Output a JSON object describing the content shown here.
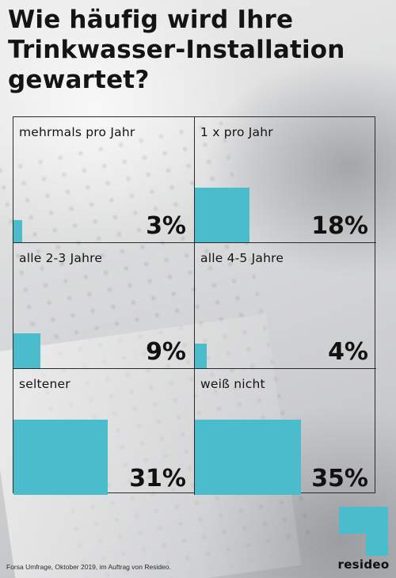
{
  "title_lines": [
    "Wie häufig wird Ihre",
    "Trinkwasser-Installation",
    "gewartet?"
  ],
  "chart_data": {
    "type": "bar",
    "title": "Wie häufig wird Ihre Trinkwasser-Installation gewartet?",
    "categories": [
      "mehrmals pro Jahr",
      "1 x pro Jahr",
      "alle 2-3 Jahre",
      "alle 4-5 Jahre",
      "seltener",
      "weiß nicht"
    ],
    "values": [
      3,
      18,
      9,
      4,
      31,
      35
    ],
    "value_labels": [
      "3%",
      "18%",
      "9%",
      "4%",
      "31%",
      "35%"
    ],
    "unit": "%",
    "ylim": [
      0,
      100
    ],
    "bar_color": "#4bbccc",
    "layout": "3x2 grid"
  },
  "source": "Forsa Umfrage, Oktober 2019, im Auftrag von Resideo.",
  "brand": {
    "name": "resideo",
    "logo_color": "#4bbccc",
    "logo_icon": "resideo-square-logo-icon"
  }
}
